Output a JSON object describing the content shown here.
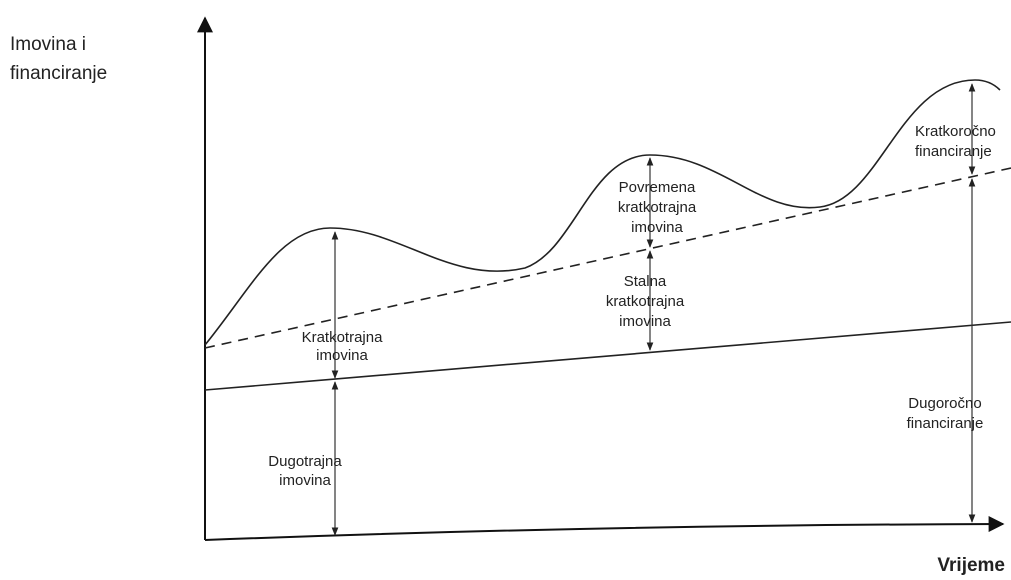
{
  "axis_y_label": [
    "Imovina i",
    "financiranje"
  ],
  "axis_x_label": "Vrijeme",
  "regions": [
    {
      "label": [
        "Kratkotrajna",
        "imovina"
      ]
    },
    {
      "label": [
        "Dugotrajna",
        "imovina"
      ]
    },
    {
      "label": [
        "Povremena",
        "kratkotrajna",
        "imovina"
      ]
    },
    {
      "label": [
        "Stalna",
        "kratkotrajna",
        "imovina"
      ]
    },
    {
      "label": [
        "Kratkoročno",
        "financiranje"
      ]
    },
    {
      "label": [
        "Dugoročno",
        "financiranje"
      ]
    }
  ]
}
